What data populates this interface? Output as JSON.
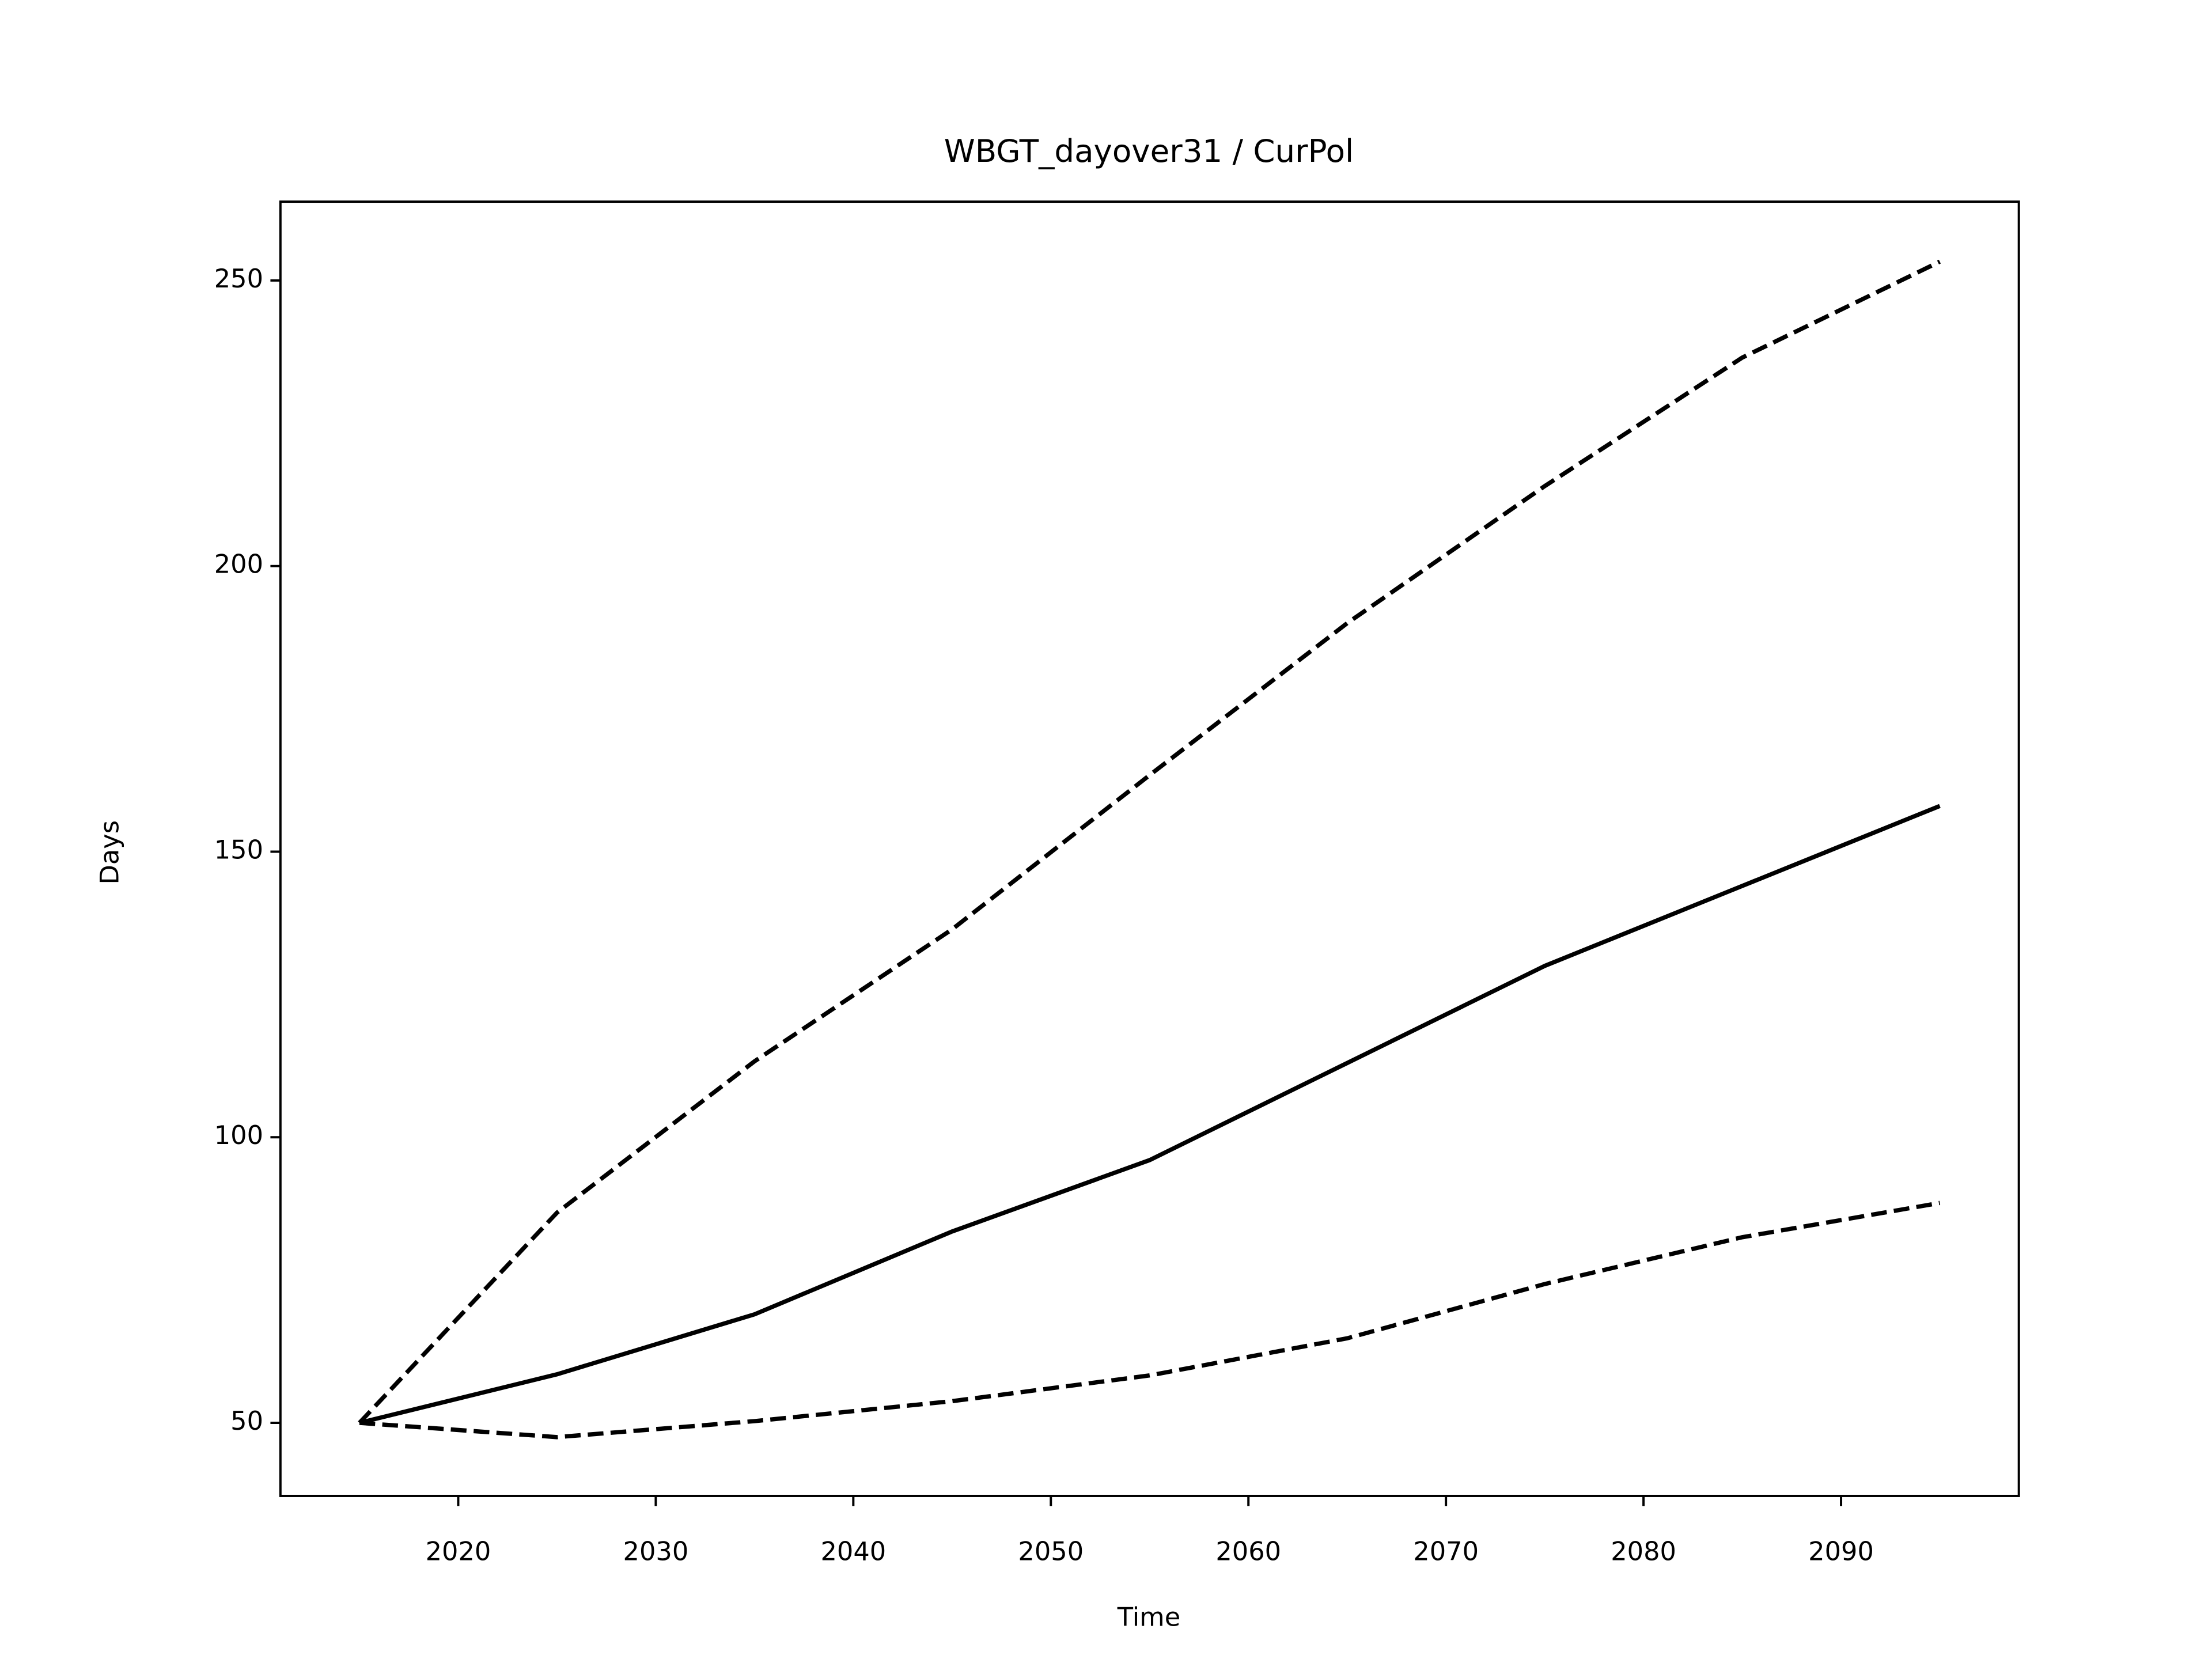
{
  "chart_data": {
    "type": "line",
    "title": "WBGT_dayover31 / CurPol",
    "xlabel": "Time",
    "ylabel": "Days",
    "x": [
      2015,
      2025,
      2035,
      2045,
      2055,
      2065,
      2075,
      2085,
      2095
    ],
    "series": [
      {
        "color": "#000000",
        "dashed": false,
        "values": [
          50,
          58.5,
          69,
          83.5,
          96,
          113,
          130,
          144,
          158
        ]
      },
      {
        "color": "#000000",
        "dashed": true,
        "values": [
          50,
          86.8,
          113.3,
          136.4,
          163.4,
          190,
          214,
          236.5,
          253.3
        ]
      },
      {
        "color": "#000000",
        "dashed": true,
        "values": [
          50,
          47.5,
          50.3,
          53.8,
          58.3,
          64.8,
          74.3,
          82.5,
          88.5
        ]
      }
    ],
    "xlim": [
      2011,
      2099
    ],
    "xticks": [
      2020,
      2030,
      2040,
      2050,
      2060,
      2070,
      2080,
      2090
    ],
    "ylim": [
      37.2,
      263.8
    ],
    "yticks": [
      50,
      100,
      150,
      200,
      250
    ],
    "grid": false
  }
}
